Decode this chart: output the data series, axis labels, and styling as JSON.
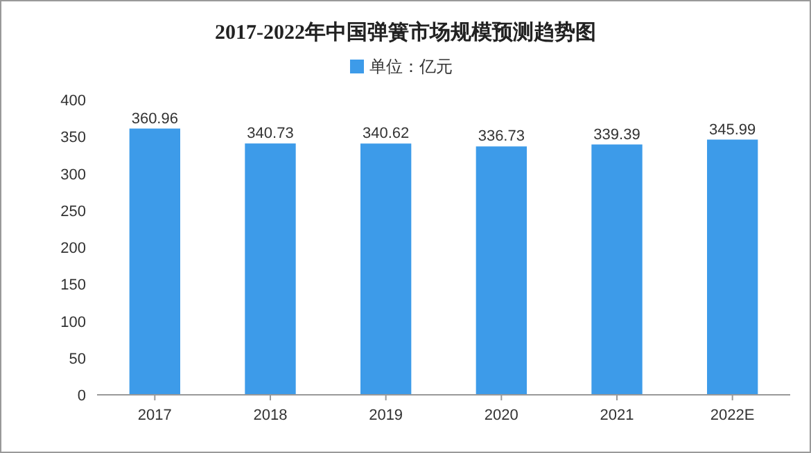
{
  "chart_data": {
    "type": "bar",
    "title": "2017-2022年中国弹簧市场规模预测趋势图",
    "categories": [
      "2017",
      "2018",
      "2019",
      "2020",
      "2021",
      "2022E"
    ],
    "series": [
      {
        "name": "单位：亿元",
        "color": "#3d9be9",
        "values": [
          360.96,
          340.73,
          340.62,
          336.73,
          339.39,
          345.99
        ]
      }
    ],
    "ylim": [
      0,
      400
    ],
    "yticks": [
      0,
      50,
      100,
      150,
      200,
      250,
      300,
      350,
      400
    ],
    "data_labels": true,
    "legend": "top",
    "grid": false
  }
}
